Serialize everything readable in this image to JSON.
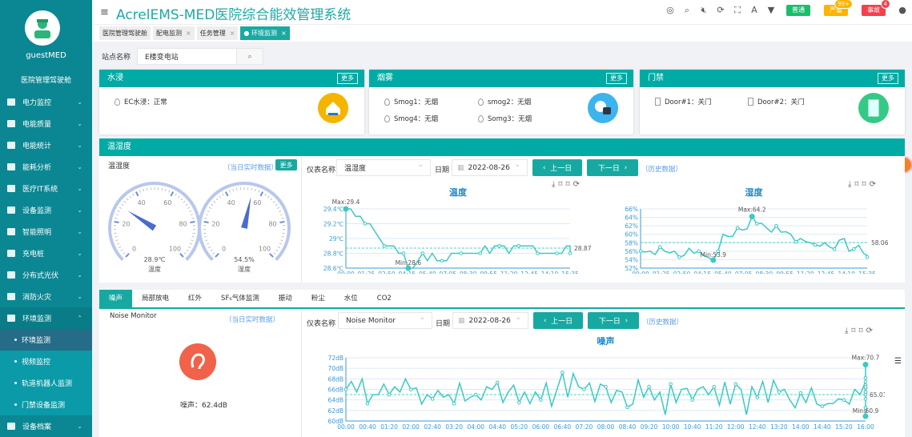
{
  "app": {
    "title": "AcrelEMS-MED医院综合能效管理系统",
    "user": "guestMED",
    "cockpit": "医院管理驾驶舱"
  },
  "header": {
    "icons": [
      "help-ring-icon",
      "search-icon",
      "mute-icon",
      "refresh-icon",
      "fullscreen-icon",
      "font-size-icon",
      "theme-shirt-icon",
      "user-icon"
    ],
    "badges": [
      {
        "label": "普通",
        "color": "#19be6b",
        "count": ""
      },
      {
        "label": "严重",
        "color": "#ffb400",
        "count": "99+"
      },
      {
        "label": "事故",
        "color": "#f5404a",
        "count": "4"
      }
    ]
  },
  "sidebar": {
    "items": [
      {
        "label": "电力监控"
      },
      {
        "label": "电能质量"
      },
      {
        "label": "电能统计"
      },
      {
        "label": "能耗分析"
      },
      {
        "label": "医疗IT系统"
      },
      {
        "label": "设备监测"
      },
      {
        "label": "智能照明"
      },
      {
        "label": "充电桩"
      },
      {
        "label": "分布式光伏"
      },
      {
        "label": "消防火灾"
      },
      {
        "label": "环境监测",
        "open": true
      }
    ],
    "sub": [
      {
        "label": "环境监测",
        "active": true
      },
      {
        "label": "视频监控"
      },
      {
        "label": "轨道机器人监测"
      },
      {
        "label": "门禁设备监测"
      }
    ],
    "last": {
      "label": "设备档案"
    }
  },
  "tabs": [
    {
      "label": "医院管理驾驶舱",
      "closable": false
    },
    {
      "label": "配电监测",
      "closable": true
    },
    {
      "label": "任务管理",
      "closable": true
    },
    {
      "label": "环境监测",
      "closable": true,
      "active": true
    }
  ],
  "station": {
    "label": "站点名称",
    "value": "E楼变电站"
  },
  "more": "更多",
  "water": {
    "title": "水浸",
    "sensors": [
      {
        "text": "EC水浸：正常"
      }
    ],
    "color": "#f5b400"
  },
  "smoke": {
    "title": "烟雾",
    "sensors": [
      {
        "text": "Smog1：无烟"
      },
      {
        "text": "smog2：无烟"
      },
      {
        "text": "Smog4：无烟"
      },
      {
        "text": "Somg3：无烟"
      }
    ],
    "color": "#3cb4ee"
  },
  "door": {
    "title": "门禁",
    "sensors": [
      {
        "text": "Door#1：关门"
      },
      {
        "text": "Door#2：关门"
      }
    ],
    "color": "#35c987"
  },
  "th": {
    "title": "温湿度",
    "panel_title": "温湿度",
    "realtime": "（当日实时数据）",
    "history": "（历史数据）",
    "meter_label": "仪表名称",
    "meter": "温湿度",
    "date_label": "日期",
    "date": "2022-08-26",
    "prev": "上一日",
    "next": "下一日",
    "gauges": [
      {
        "value": 28.9,
        "display": "28.9℃",
        "name": "温度",
        "max": 100
      },
      {
        "value": 54.5,
        "display": "54.5%",
        "name": "湿度",
        "max": 100
      }
    ],
    "gauge_ticks": [
      "0",
      "20",
      "40",
      "60",
      "80",
      "100"
    ]
  },
  "noise": {
    "tabs": [
      "噪声",
      "局部放电",
      "红外",
      "SF₆气体监测",
      "振动",
      "粉尘",
      "水位",
      "CO2"
    ],
    "panel_title": "Noise Monitor",
    "realtime": "（当日实时数据）",
    "history": "（历史数据）",
    "meter_label": "仪表名称",
    "meter": "Noise Monitor",
    "date_label": "日期",
    "date": "2022-08-26",
    "prev": "上一日",
    "next": "下一日",
    "reading": "噪声：62.4dB"
  },
  "chart_data": [
    {
      "type": "line",
      "title": "温度",
      "unit": "℃",
      "ylim": [
        28.6,
        29.4
      ],
      "yticks": [
        "28.6℃",
        "28.8℃",
        "29℃",
        "29.2℃",
        "29.4℃"
      ],
      "xticks": [
        "00:00",
        "01:25",
        "02:50",
        "04:15",
        "05:40",
        "07:05",
        "08:30",
        "09:55",
        "11:20",
        "12:45",
        "14:10",
        "15:35"
      ],
      "interval_min": 20,
      "values": [
        29.4,
        29.4,
        29.3,
        29.3,
        29.2,
        29.2,
        29.1,
        29.0,
        28.9,
        28.9,
        28.9,
        28.8,
        28.8,
        28.6,
        28.6,
        28.7,
        28.8,
        28.7,
        28.8,
        28.7,
        28.7,
        28.7,
        28.8,
        28.8,
        28.8,
        28.8,
        28.8,
        28.8,
        28.8,
        28.9,
        28.8,
        28.9,
        28.9,
        28.9,
        28.8,
        28.9,
        28.9,
        28.9,
        28.9,
        28.9,
        28.8,
        28.8,
        28.8,
        28.8,
        28.8,
        28.8,
        28.9,
        28.9,
        28.8
      ],
      "max": {
        "label": "Max:29.4",
        "value": 29.4
      },
      "min": {
        "label": "Min:28.6",
        "value": 28.6
      },
      "average": {
        "label": "28.87",
        "value": 28.87
      }
    },
    {
      "type": "line",
      "title": "湿度",
      "unit": "%",
      "ylim": [
        52,
        66
      ],
      "yticks": [
        "52%",
        "54%",
        "56%",
        "58%",
        "60%",
        "62%",
        "64%",
        "66%"
      ],
      "xticks": [
        "00:00",
        "01:25",
        "02:50",
        "04:15",
        "05:40",
        "07:05",
        "08:30",
        "09:55",
        "11:20",
        "12:45",
        "14:10",
        "15:35"
      ],
      "interval_min": 20,
      "values": [
        56,
        55.8,
        56,
        55.2,
        57,
        56,
        55.6,
        56,
        54.6,
        55,
        56.7,
        55.5,
        56,
        55,
        54.5,
        53.9,
        56,
        60,
        59.5,
        59.5,
        61.5,
        61,
        61.3,
        64.2,
        62.5,
        62.6,
        61.5,
        60.5,
        62,
        60.5,
        60.6,
        60,
        58.2,
        59,
        58.3,
        58,
        57.5,
        57.2,
        58,
        57,
        56.5,
        58.6,
        59,
        56,
        56.5,
        57.4,
        55.5,
        55,
        54.6
      ],
      "max": {
        "label": "Max:64.2",
        "value": 64.2
      },
      "min": {
        "label": "Min:53.9",
        "value": 53.9
      },
      "average": {
        "label": "58.06",
        "value": 58.06
      }
    },
    {
      "type": "line",
      "title": "噪声",
      "unit": "dB",
      "ylim": [
        60,
        72
      ],
      "yticks": [
        "60dB",
        "62dB",
        "64dB",
        "66dB",
        "68dB",
        "70dB",
        "72dB"
      ],
      "xticks": [
        "00:00",
        "00:40",
        "01:20",
        "02:00",
        "02:40",
        "03:20",
        "04:00",
        "04:40",
        "05:20",
        "06:00",
        "06:40",
        "07:20",
        "08:00",
        "08:40",
        "09:20",
        "10:00",
        "10:40",
        "11:20",
        "12:00",
        "12:40",
        "13:20",
        "14:00",
        "14:40",
        "15:20",
        "16:00"
      ],
      "interval_min": 10,
      "values": [
        66,
        67.5,
        65.5,
        68,
        63.3,
        65,
        65,
        67,
        65,
        66.5,
        65.5,
        68,
        66,
        66.3,
        63.2,
        65,
        64.2,
        65.8,
        64.5,
        65,
        63.3,
        67.2,
        63.8,
        64.5,
        65,
        64,
        66.5,
        66,
        67.3,
        63.5,
        65.5,
        66.8,
        63.5,
        65.5,
        63.3,
        65.5,
        64,
        67.2,
        62.8,
        66,
        69.2,
        64.5,
        69,
        66.5,
        66,
        67.2,
        63.7,
        67,
        66.5,
        63.5,
        65.8,
        65.5,
        62.6,
        63.2,
        67.8,
        64.5,
        66.5,
        64,
        65.5,
        61.2,
        67,
        63.5,
        66,
        66.2,
        64,
        66,
        66.5,
        65,
        66.5,
        63,
        67.4,
        63.2,
        67,
        66,
        61.2,
        66.5,
        64.5,
        67.5,
        63.5,
        67.7,
        65.5,
        66,
        64,
        62.5,
        65.3,
        63.5,
        66.3,
        63.2,
        62.8,
        63.3,
        63.3,
        64.2,
        64,
        63.2,
        66,
        65,
        67.5,
        65.2,
        66.5,
        64.8,
        64.2,
        67.5,
        63.5,
        65.5,
        66.2,
        63,
        64.5,
        66.8,
        65.5,
        67.5,
        62.5,
        67.3,
        65.5,
        64.2,
        66,
        63,
        62.5,
        65,
        66.5,
        67.3,
        65,
        66.5,
        64.5,
        65.8,
        62,
        66.5,
        65.5,
        67,
        66.8,
        63.2,
        69,
        64.5,
        68.2,
        67,
        68,
        65.5,
        70.7,
        65.5,
        61.5,
        64.5,
        66.5,
        64,
        61.8,
        60.9,
        65,
        64.2,
        62.3,
        65,
        65.5,
        67,
        63.5,
        67.3,
        62.5
      ],
      "max": {
        "label": "Max:70.7",
        "value": 70.7
      },
      "min": {
        "label": "Min:60.9",
        "value": 60.9
      },
      "average": {
        "label": "65.01",
        "value": 65.01
      }
    }
  ]
}
